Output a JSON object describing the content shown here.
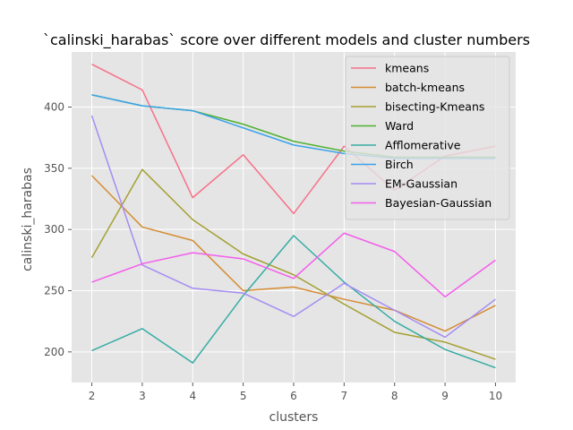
{
  "chart_data": {
    "type": "line",
    "title": "`calinski_harabas` score over different models and cluster numbers",
    "xlabel": "clusters",
    "ylabel": "calinski_harabas",
    "x": [
      2,
      3,
      4,
      5,
      6,
      7,
      8,
      9,
      10
    ],
    "x_ticks": [
      "2",
      "3",
      "4",
      "5",
      "6",
      "7",
      "8",
      "9",
      "10"
    ],
    "y_ticks": [
      "200",
      "250",
      "300",
      "350",
      "400"
    ],
    "xlim": [
      1.6,
      10.4
    ],
    "ylim": [
      175,
      445
    ],
    "grid": true,
    "legend_position": "top-right",
    "style": "ggplot",
    "series": [
      {
        "name": "kmeans",
        "color": "#f77189",
        "values": [
          435,
          414,
          326,
          361,
          313,
          368,
          332,
          360,
          368
        ]
      },
      {
        "name": "batch-kmeans",
        "color": "#d58c32",
        "values": [
          344,
          302,
          291,
          250,
          253,
          243,
          234,
          217,
          238
        ]
      },
      {
        "name": "bisecting-Kmeans",
        "color": "#a4a031",
        "values": [
          277,
          349,
          308,
          280,
          263,
          239,
          216,
          208,
          194
        ]
      },
      {
        "name": "Ward",
        "color": "#50b131",
        "values": [
          410,
          401,
          397,
          386,
          372,
          364,
          359,
          359,
          359
        ]
      },
      {
        "name": "Afflomerative",
        "color": "#36ada4",
        "values": [
          201,
          219,
          191,
          246,
          295,
          257,
          225,
          202,
          187
        ]
      },
      {
        "name": "Birch",
        "color": "#3ba3ec",
        "values": [
          410,
          401,
          397,
          383,
          369,
          362,
          358,
          358,
          358
        ]
      },
      {
        "name": "EM-Gaussian",
        "color": "#a48cf4",
        "values": [
          393,
          271,
          252,
          248,
          229,
          256,
          234,
          212,
          243
        ]
      },
      {
        "name": "Bayesian-Gaussian",
        "color": "#f45deb",
        "values": [
          257,
          272,
          281,
          276,
          260,
          297,
          282,
          245,
          275
        ]
      }
    ]
  }
}
